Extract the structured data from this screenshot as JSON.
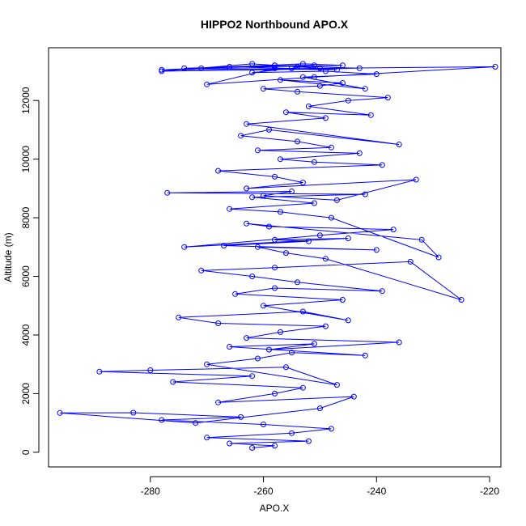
{
  "chart_data": {
    "type": "scatter",
    "title": "HIPPO2 Northbound APO.X",
    "xlabel": "APO.X",
    "ylabel": "Altitude (m)",
    "xlim": [
      -298,
      -218
    ],
    "ylim": [
      -500,
      13800
    ],
    "x_ticks": [
      -280,
      -260,
      -240,
      -220
    ],
    "y_ticks": [
      0,
      2000,
      4000,
      6000,
      8000,
      10000,
      12000
    ],
    "x_tick_labels": [
      "-280",
      "-260",
      "-240",
      "-220"
    ],
    "y_tick_labels": [
      "0",
      "2000",
      "4000",
      "6000",
      "8000",
      "10000",
      "12000"
    ],
    "grid": false,
    "legend": "none",
    "series_color": "#0000ff",
    "marker": "open-circle",
    "connect_points": true,
    "series": [
      {
        "x": [
          -262,
          -258,
          -266,
          -252,
          -270,
          -255,
          -248,
          -260,
          -278,
          -264,
          -283,
          -296,
          -272,
          -250,
          -244,
          -268,
          -258,
          -253,
          -276,
          -262,
          -289,
          -280,
          -256,
          -247,
          -270,
          -261,
          -255,
          -242,
          -266,
          -251,
          -259,
          -236,
          -263,
          -257,
          -249,
          -268,
          -275,
          -253,
          -245,
          -260,
          -246,
          -265,
          -258,
          -239,
          -254,
          -262,
          -271,
          -258,
          -234,
          -225,
          -249,
          -256,
          -261,
          -240,
          -267,
          -252,
          -258,
          -245,
          -274,
          -250,
          -237,
          -259,
          -263,
          -232,
          -229,
          -248,
          -257,
          -266,
          -251,
          -262,
          -242,
          -277,
          -255,
          -260,
          -247,
          -233,
          -263,
          -253,
          -258,
          -268,
          -239,
          -251,
          -257,
          -243,
          -261,
          -248,
          -254,
          -264,
          -259,
          -236,
          -263,
          -249,
          -256,
          -241,
          -252,
          -245,
          -238,
          -254,
          -260,
          -250,
          -246,
          -257,
          -242,
          -253,
          -240,
          -249,
          -262,
          -255,
          -251,
          -266,
          -247,
          -271,
          -253,
          -246,
          -274,
          -258,
          -254,
          -250,
          -262,
          -278,
          -243,
          -258,
          -278,
          -219,
          -251,
          -270,
          -258
        ],
        "y": [
          150,
          220,
          300,
          380,
          500,
          650,
          800,
          950,
          1100,
          1200,
          1350,
          1340,
          1000,
          1500,
          1900,
          1700,
          2000,
          2200,
          2400,
          2600,
          2750,
          2800,
          2900,
          2300,
          3000,
          3200,
          3400,
          3300,
          3600,
          3700,
          3500,
          3750,
          3900,
          4100,
          4300,
          4400,
          4600,
          4800,
          4500,
          5000,
          5200,
          5400,
          5600,
          5500,
          5800,
          6000,
          6200,
          6300,
          6500,
          5200,
          6600,
          6800,
          7000,
          6900,
          7050,
          7200,
          7250,
          7300,
          7000,
          7400,
          7600,
          7700,
          7800,
          7250,
          6650,
          8000,
          8200,
          8300,
          8500,
          8700,
          8800,
          8850,
          8900,
          8750,
          8600,
          9300,
          9000,
          9200,
          9400,
          9600,
          9800,
          9900,
          10000,
          10200,
          10300,
          10400,
          10600,
          10800,
          11000,
          10500,
          11200,
          11400,
          11600,
          11500,
          11800,
          12000,
          12100,
          12300,
          12400,
          12500,
          12600,
          12700,
          12400,
          12800,
          12900,
          13000,
          12950,
          13100,
          13200,
          13150,
          13050,
          13100,
          13250,
          13200,
          13100,
          13200,
          13150,
          13100,
          13250,
          13000,
          13100,
          13200,
          13050,
          13150,
          12800,
          12550,
          13100
        ]
      }
    ]
  }
}
